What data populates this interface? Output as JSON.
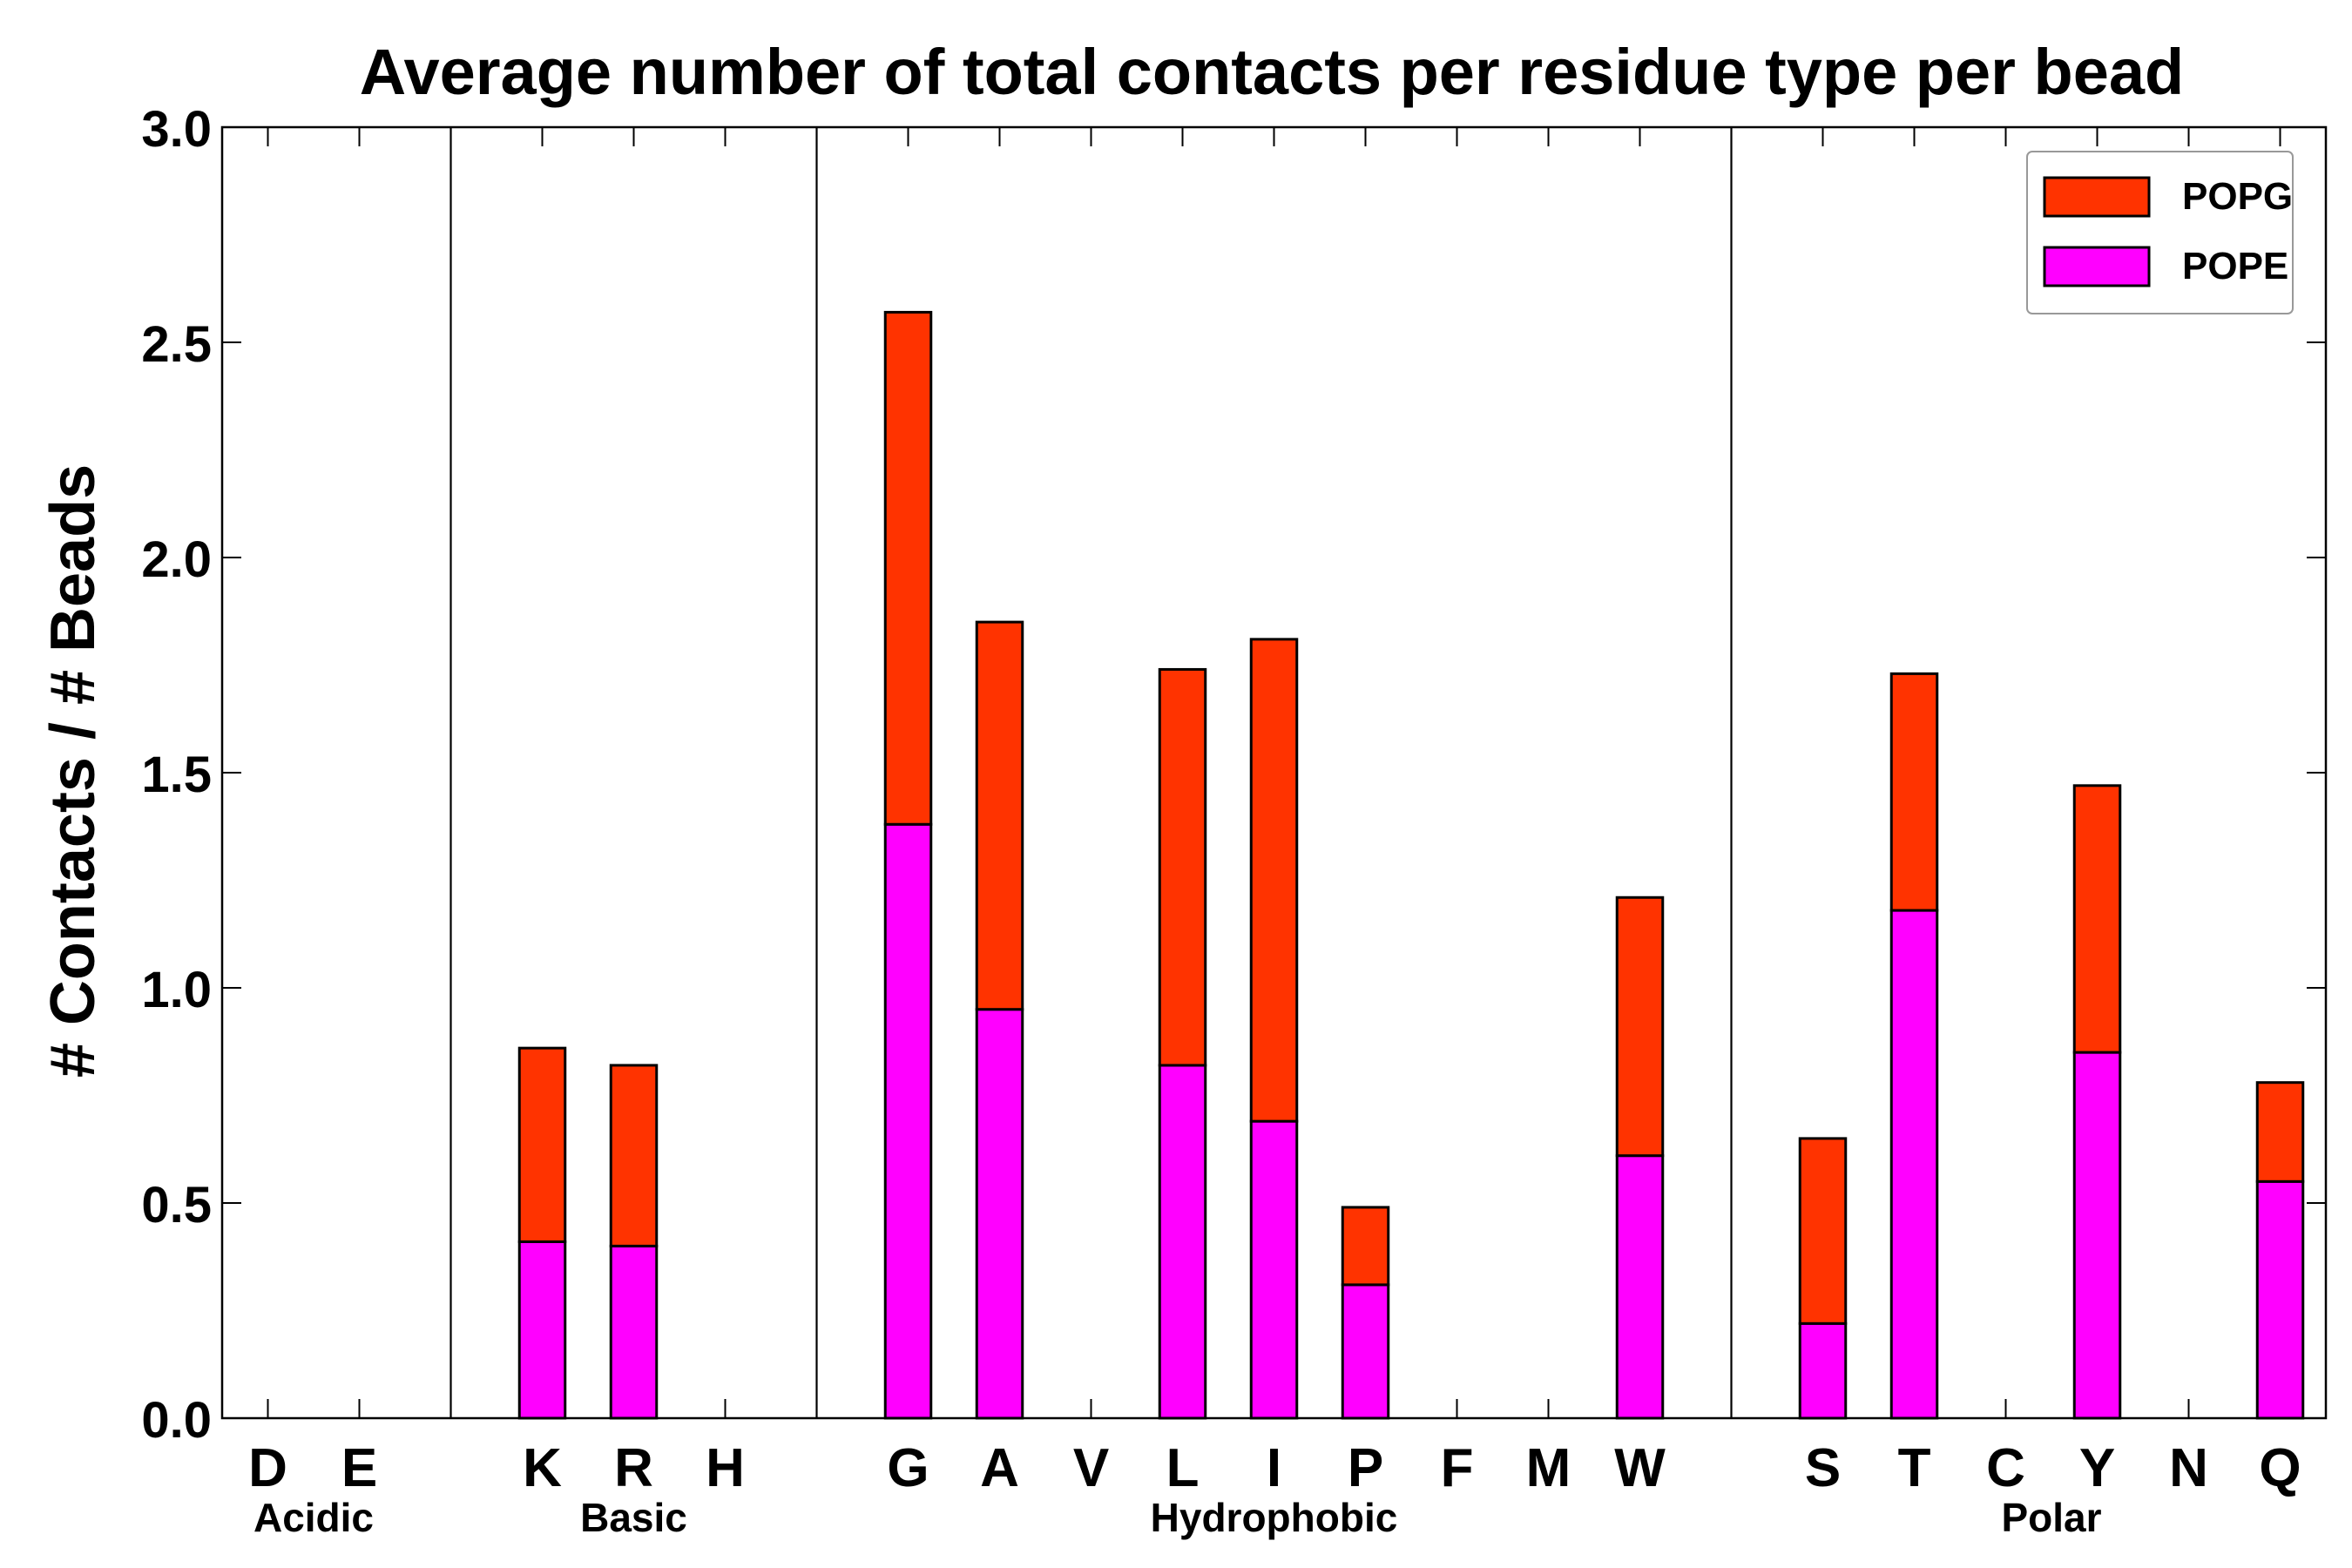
{
  "chart_data": {
    "type": "bar",
    "stacked": true,
    "title": "Average number of total contacts per residue type per bead",
    "xlabel": "",
    "ylabel": "# Contacts / # Beads",
    "ylim": [
      0,
      3.0
    ],
    "yticks": [
      "0.0",
      "0.5",
      "1.0",
      "1.5",
      "2.0",
      "2.5",
      "3.0"
    ],
    "ytick_values": [
      0,
      0.5,
      1.0,
      1.5,
      2.0,
      2.5,
      3.0
    ],
    "categories": [
      "D",
      "E",
      "",
      "K",
      "R",
      "H",
      "",
      "G",
      "A",
      "V",
      "L",
      "I",
      "P",
      "F",
      "M",
      "W",
      "",
      "S",
      "T",
      "C",
      "Y",
      "N",
      "Q"
    ],
    "series": [
      {
        "name": "POPE",
        "color": "#ff00ff",
        "values": [
          0,
          0,
          0,
          0.41,
          0.4,
          0,
          0,
          1.38,
          0.95,
          0,
          0.82,
          0.69,
          0.31,
          0,
          0,
          0.61,
          0,
          0.22,
          1.18,
          0,
          0.85,
          0,
          0.55
        ]
      },
      {
        "name": "POPG",
        "color": "#ff3300",
        "values": [
          0,
          0,
          0,
          0.45,
          0.42,
          0,
          0,
          1.19,
          0.9,
          0,
          0.92,
          1.12,
          0.18,
          0,
          0,
          0.6,
          0,
          0.43,
          0.55,
          0,
          0.62,
          0,
          0.23
        ]
      }
    ],
    "groups": [
      {
        "label": "Acidic",
        "start": 0,
        "end": 1
      },
      {
        "label": "Basic",
        "start": 3,
        "end": 5
      },
      {
        "label": "Hydrophobic",
        "start": 7,
        "end": 15
      },
      {
        "label": "Polar",
        "start": 17,
        "end": 22
      }
    ],
    "separators": [
      2,
      6,
      16
    ],
    "legend": {
      "position": "top-right",
      "entries": [
        {
          "label": "POPG",
          "color": "#ff3300"
        },
        {
          "label": "POPE",
          "color": "#ff00ff"
        }
      ]
    },
    "grid": false
  }
}
